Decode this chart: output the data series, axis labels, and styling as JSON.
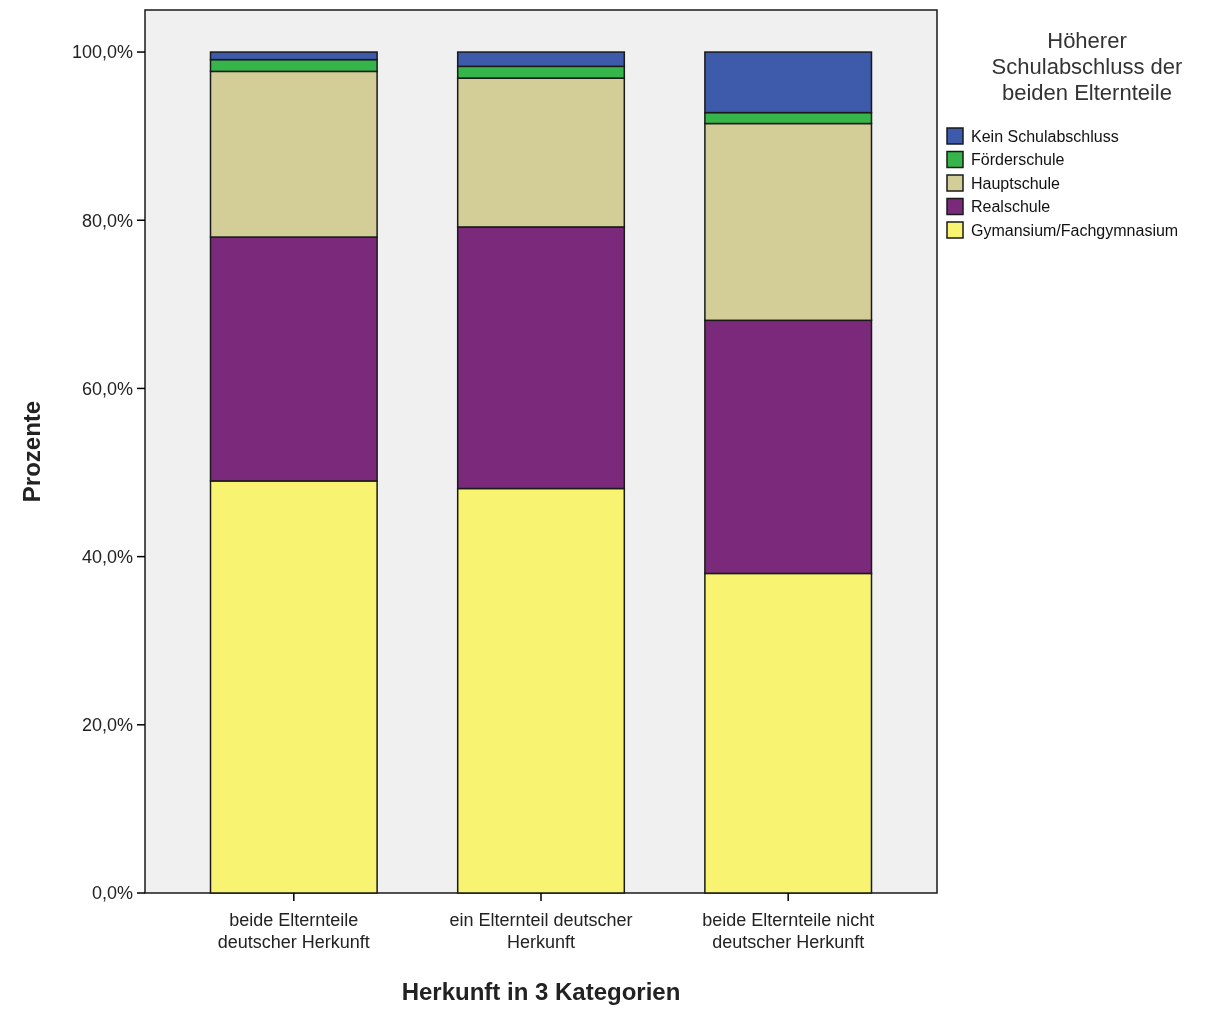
{
  "chart_data": {
    "type": "bar",
    "stacked": true,
    "xlabel": "Herkunft in 3 Kategorien",
    "ylabel": "Prozente",
    "legend_title": "Höherer Schulabschluss der beiden Elternteile",
    "legend": "right",
    "categories": [
      "beide Elternteile deutscher Herkunft",
      "ein Elternteil deutscher Herkunft",
      "beide Elternteile nicht deutscher Herkunft"
    ],
    "ylim": [
      0,
      105
    ],
    "yticks": [
      {
        "value": 0,
        "label": "0,0%"
      },
      {
        "value": 20,
        "label": "20,0%"
      },
      {
        "value": 40,
        "label": "40,0%"
      },
      {
        "value": 60,
        "label": "60,0%"
      },
      {
        "value": 80,
        "label": "80,0%"
      },
      {
        "value": 100,
        "label": "100,0%"
      }
    ],
    "series": [
      {
        "name": "Gymansium/Fachgymnasium",
        "color": "#f8f471",
        "values": [
          49.0,
          48.1,
          38.0
        ]
      },
      {
        "name": "Realschule",
        "color": "#7b2a7b",
        "values": [
          29.0,
          31.1,
          30.1
        ]
      },
      {
        "name": "Hauptschule",
        "color": "#d3cd97",
        "values": [
          19.7,
          17.7,
          23.4
        ]
      },
      {
        "name": "Förderschule",
        "color": "#35b54a",
        "values": [
          1.4,
          1.4,
          1.3
        ]
      },
      {
        "name": "Kein Schulabschluss",
        "color": "#3d5aab",
        "values": [
          0.9,
          1.7,
          7.2
        ]
      }
    ]
  }
}
